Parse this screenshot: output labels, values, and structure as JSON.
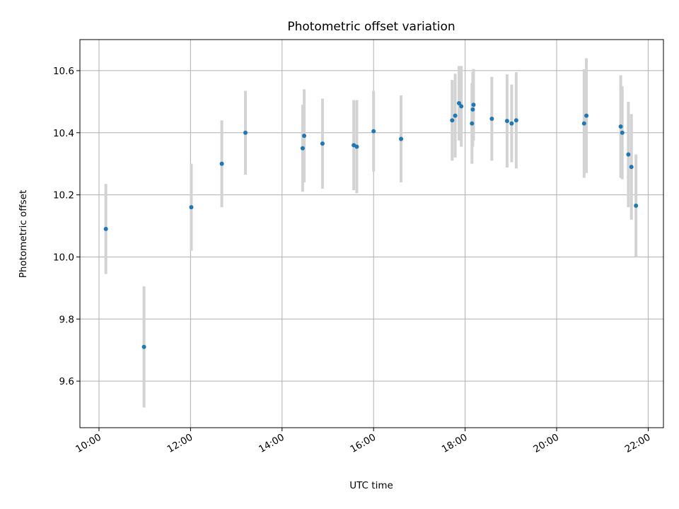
{
  "chart_data": {
    "type": "scatter",
    "title": "Photometric offset variation",
    "xlabel": "UTC time",
    "ylabel": "Photometric offset",
    "x_axis_kind": "time",
    "xlim": [
      "09:35",
      "22:20"
    ],
    "ylim": [
      9.45,
      10.7
    ],
    "x_ticks": [
      "10:00",
      "12:00",
      "14:00",
      "16:00",
      "18:00",
      "20:00",
      "22:00"
    ],
    "y_ticks": [
      "9.6",
      "9.8",
      "10.0",
      "10.2",
      "10.4",
      "10.6"
    ],
    "grid": true,
    "legend": "none",
    "marker_color": "#1f77b4",
    "errorbar_color": "#d3d3d3",
    "series": [
      {
        "points": [
          {
            "time": "10:09",
            "y": 10.09,
            "err": 0.145
          },
          {
            "time": "10:59",
            "y": 9.71,
            "err": 0.195
          },
          {
            "time": "12:01",
            "y": 10.16,
            "err": 0.14
          },
          {
            "time": "12:41",
            "y": 10.3,
            "err": 0.14
          },
          {
            "time": "13:12",
            "y": 10.4,
            "err": 0.135
          },
          {
            "time": "14:27",
            "y": 10.35,
            "err": 0.14
          },
          {
            "time": "14:29",
            "y": 10.39,
            "err": 0.15
          },
          {
            "time": "14:53",
            "y": 10.365,
            "err": 0.145
          },
          {
            "time": "15:34",
            "y": 10.36,
            "err": 0.145
          },
          {
            "time": "15:38",
            "y": 10.355,
            "err": 0.15
          },
          {
            "time": "16:00",
            "y": 10.405,
            "err": 0.13
          },
          {
            "time": "16:36",
            "y": 10.38,
            "err": 0.14
          },
          {
            "time": "17:43",
            "y": 10.44,
            "err": 0.13
          },
          {
            "time": "17:47",
            "y": 10.455,
            "err": 0.135
          },
          {
            "time": "17:52",
            "y": 10.495,
            "err": 0.12
          },
          {
            "time": "17:55",
            "y": 10.485,
            "err": 0.13
          },
          {
            "time": "18:09",
            "y": 10.43,
            "err": 0.13
          },
          {
            "time": "18:10",
            "y": 10.475,
            "err": 0.12
          },
          {
            "time": "18:11",
            "y": 10.49,
            "err": 0.115
          },
          {
            "time": "18:35",
            "y": 10.445,
            "err": 0.135
          },
          {
            "time": "18:55",
            "y": 10.438,
            "err": 0.15
          },
          {
            "time": "19:01",
            "y": 10.43,
            "err": 0.125
          },
          {
            "time": "19:07",
            "y": 10.44,
            "err": 0.155
          },
          {
            "time": "20:36",
            "y": 10.43,
            "err": 0.175
          },
          {
            "time": "20:39",
            "y": 10.455,
            "err": 0.185
          },
          {
            "time": "21:24",
            "y": 10.42,
            "err": 0.165
          },
          {
            "time": "21:26",
            "y": 10.4,
            "err": 0.15
          },
          {
            "time": "21:34",
            "y": 10.33,
            "err": 0.17
          },
          {
            "time": "21:38",
            "y": 10.29,
            "err": 0.17
          },
          {
            "time": "21:44",
            "y": 10.165,
            "err": 0.165
          }
        ]
      }
    ]
  }
}
